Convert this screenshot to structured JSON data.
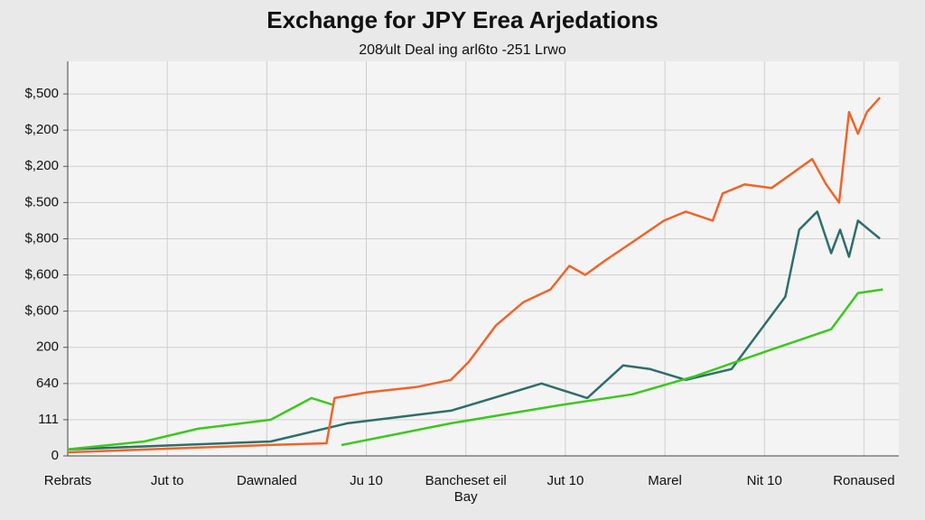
{
  "chart_data": {
    "type": "line",
    "title": "Exchange for JPY Erea Arjedations",
    "subtitle": "208⁄ult Deal ing arl6to -251 Lrwo",
    "xlim": [
      0,
      8.35
    ],
    "ylim": [
      0,
      10.9
    ],
    "grid": true,
    "xticks": [
      {
        "value": 0,
        "label": "Rebrats"
      },
      {
        "value": 1,
        "label": "Jut to"
      },
      {
        "value": 2,
        "label": "Dawnaled"
      },
      {
        "value": 3,
        "label": "Ju 10"
      },
      {
        "value": 4,
        "label": "Bancheset eil Bay"
      },
      {
        "value": 5,
        "label": "Jut 10"
      },
      {
        "value": 6,
        "label": "Marel"
      },
      {
        "value": 7,
        "label": "Nit 10"
      },
      {
        "value": 8,
        "label": "Ronaused"
      }
    ],
    "yticks": [
      0,
      {
        "value": 1,
        "label": "111"
      },
      {
        "value": 2,
        "label": "640"
      },
      {
        "value": 3,
        "label": "200"
      },
      {
        "value": 4,
        "label": "$,600"
      },
      {
        "value": 5,
        "label": "$,600"
      },
      {
        "value": 6,
        "label": "$,800"
      },
      {
        "value": 7,
        "label": "$.500"
      },
      {
        "value": 8,
        "label": "$,200"
      },
      {
        "value": 9,
        "label": "$,200"
      },
      {
        "value": 10,
        "label": "$,500"
      }
    ],
    "series": [
      {
        "color": "#2e6e6a",
        "x": [
          0,
          2.04,
          2.81,
          3.85,
          4.76,
          5.22,
          5.58,
          5.85,
          6.21,
          6.67,
          6.94,
          7.21,
          7.35,
          7.53,
          7.67,
          7.76,
          7.85,
          7.94,
          8.16
        ],
        "values": [
          0.18,
          0.4,
          0.9,
          1.25,
          2.0,
          1.6,
          2.5,
          2.4,
          2.1,
          2.4,
          3.4,
          4.4,
          6.25,
          6.75,
          5.6,
          6.25,
          5.5,
          6.5,
          6.0
        ]
      },
      {
        "color": "#3cc81e",
        "x": [
          0,
          0.77,
          1.31,
          2.04,
          2.45,
          2.68,
          2.7,
          2.75,
          3.85,
          4.94,
          5.67,
          6.3,
          7.03,
          7.67,
          7.94,
          8.19
        ],
        "values": [
          0.18,
          0.4,
          0.75,
          1.0,
          1.6,
          1.4,
          null,
          0.3,
          0.9,
          1.4,
          1.7,
          2.2,
          2.9,
          3.5,
          4.5,
          4.6
        ]
      },
      {
        "color": "#f0642a",
        "x": [
          0,
          1,
          2,
          2.6,
          2.68,
          3.0,
          3.5,
          3.85,
          4.03,
          4.3,
          4.58,
          4.85,
          5.04,
          5.2,
          5.4,
          5.67,
          5.99,
          6.21,
          6.48,
          6.58,
          6.8,
          7.07,
          7.25,
          7.48,
          7.62,
          7.75,
          7.85,
          7.94,
          8.03,
          8.16
        ],
        "values": [
          0.1,
          0.2,
          0.3,
          0.35,
          1.6,
          1.75,
          1.9,
          2.1,
          2.6,
          3.6,
          4.25,
          4.6,
          5.25,
          5.0,
          5.4,
          5.9,
          6.5,
          6.75,
          6.5,
          7.25,
          7.5,
          7.4,
          7.75,
          8.2,
          7.5,
          7.0,
          9.5,
          8.9,
          9.5,
          9.9
        ]
      }
    ]
  }
}
